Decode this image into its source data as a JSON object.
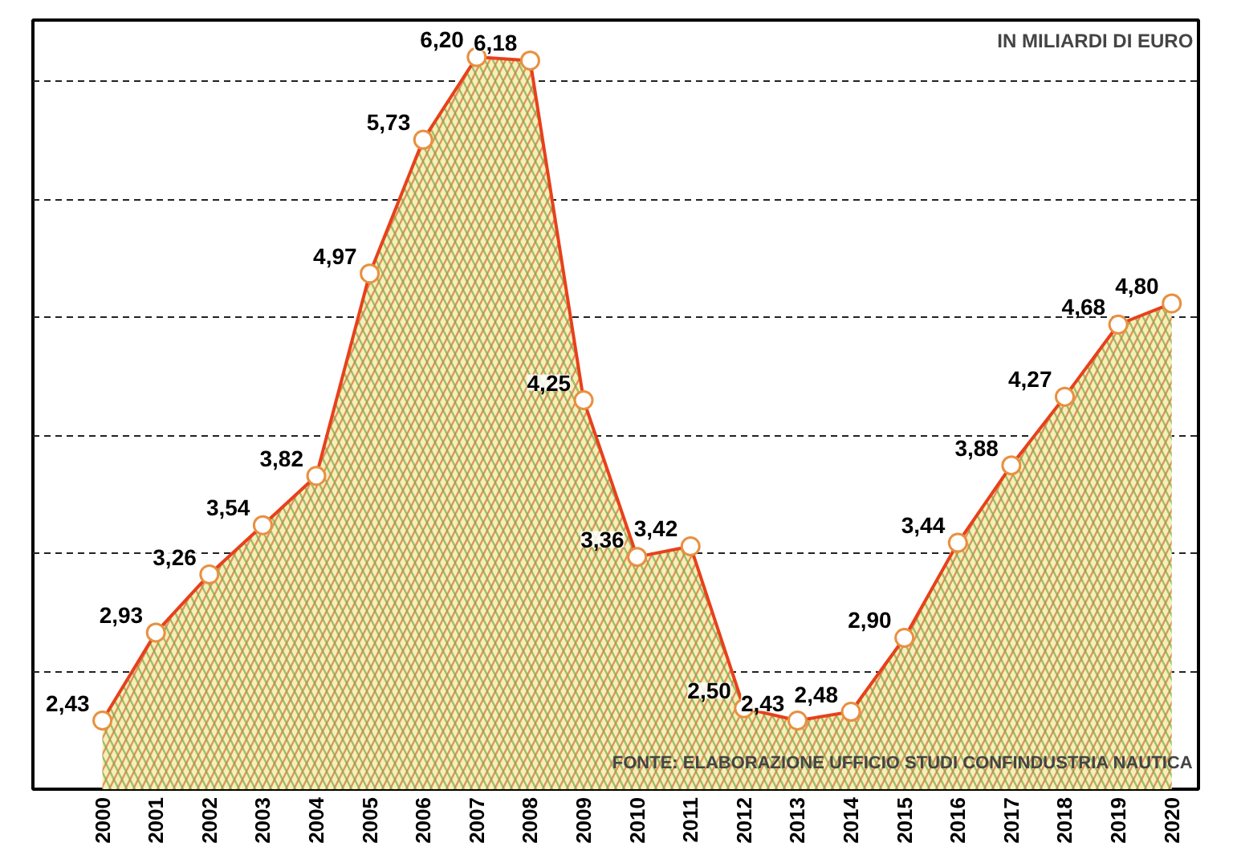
{
  "chart_data": {
    "type": "area",
    "categories": [
      "2000",
      "2001",
      "2002",
      "2003",
      "2004",
      "2005",
      "2006",
      "2007",
      "2008",
      "2009",
      "2010",
      "2011",
      "2012",
      "2013",
      "2014",
      "2015",
      "2016",
      "2017",
      "2018",
      "2019",
      "2020"
    ],
    "series": [
      {
        "color": "#e8401c",
        "values": [
          2.43,
          2.93,
          3.26,
          3.54,
          3.82,
          4.97,
          5.73,
          6.2,
          6.18,
          4.25,
          3.36,
          3.42,
          2.5,
          2.43,
          2.48,
          2.9,
          3.44,
          3.88,
          4.27,
          4.68,
          4.8
        ],
        "value_labels": [
          "2,43",
          "2,93",
          "3,26",
          "3,54",
          "3,82",
          "4,97",
          "5,73",
          "6,20",
          "6,18",
          "4,25",
          "3,36",
          "3,42",
          "2,50",
          "2,43",
          "2,48",
          "2,90",
          "3,44",
          "3,88",
          "4,27",
          "4,68",
          "4,80"
        ]
      }
    ],
    "ylim": [
      2.04,
      6.41
    ],
    "yticks": [
      {
        "value": 2.71,
        "label": null
      },
      {
        "value": 3.38,
        "label": null
      },
      {
        "value": 4.05,
        "label": null
      },
      {
        "value": 4.72,
        "label": null
      },
      {
        "value": 5.39,
        "label": null
      },
      {
        "value": 6.06,
        "label": null
      }
    ],
    "tick_labels": "x",
    "grid": "y",
    "marker": "circle",
    "line_style": "solid",
    "annotations": [
      "IN MILIARDI DI EURO",
      "FONTE: ELABORAZIONE UFFICIO STUDI CONFINDUSTRIA NAUTICA"
    ]
  }
}
